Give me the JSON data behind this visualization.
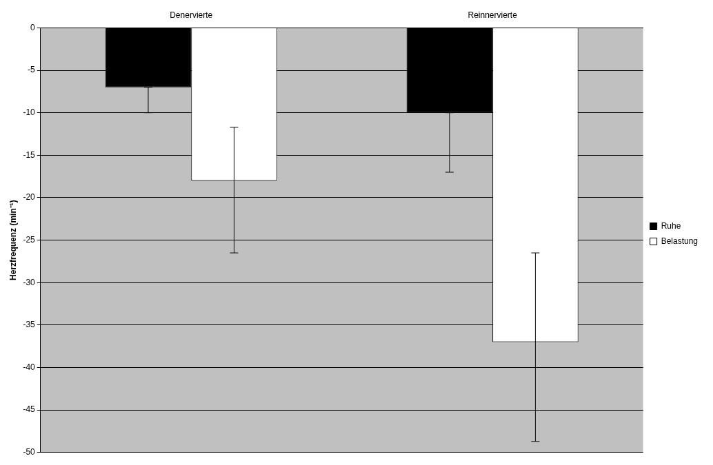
{
  "chart_data": {
    "type": "bar",
    "ylabel": "Herzfrequenz (min⁻¹)",
    "categories": [
      "Denervierte",
      "Reinnervierte"
    ],
    "series": [
      {
        "name": "Ruhe",
        "color": "#000000",
        "values": [
          -7,
          -10
        ],
        "errors": [
          [
            -10,
            -7
          ],
          [
            -17,
            -10
          ]
        ]
      },
      {
        "name": "Belastung",
        "color": "#ffffff",
        "values": [
          -18,
          -37
        ],
        "errors": [
          [
            -26.5,
            -11.7
          ],
          [
            -48.7,
            -26.5
          ]
        ]
      }
    ],
    "ylim": [
      -50,
      0
    ],
    "yticks": [
      -50,
      -45,
      -40,
      -35,
      -30,
      -25,
      -20,
      -15,
      -10,
      -5,
      0
    ],
    "grid": "y",
    "legend": "right"
  }
}
